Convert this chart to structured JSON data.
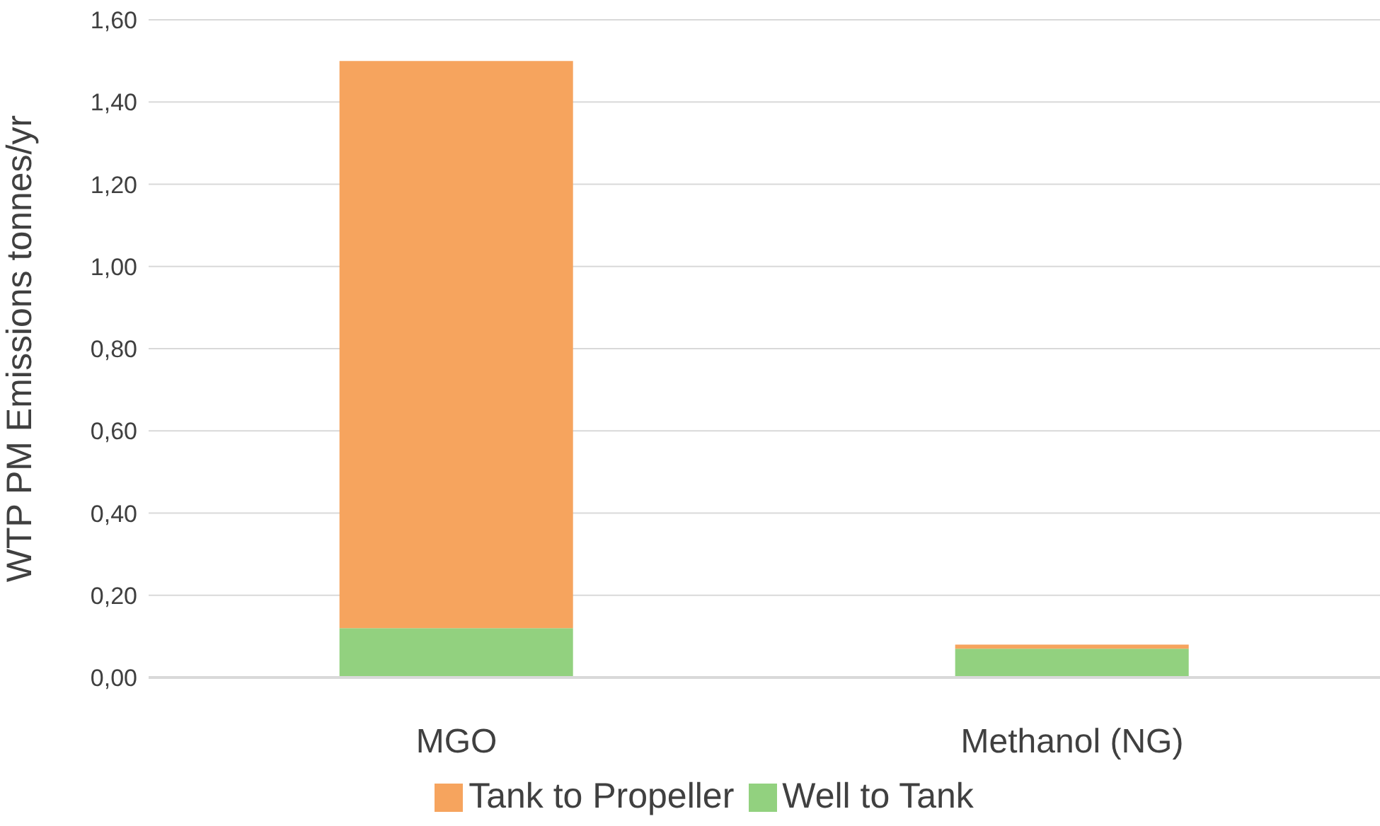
{
  "chart_data": {
    "type": "bar",
    "stacked": true,
    "ylabel": "WTP PM Emissions tonnes/yr",
    "categories": [
      "MGO",
      "Methanol (NG)"
    ],
    "series": [
      {
        "name": "Well to Tank",
        "color": "#92d17f",
        "values": [
          0.12,
          0.07
        ]
      },
      {
        "name": "Tank to Propeller",
        "color": "#f6a45e",
        "values": [
          1.38,
          0.01
        ]
      }
    ],
    "ylim": [
      0,
      1.6
    ],
    "yticks": [
      {
        "value": 0,
        "label": "0,00"
      },
      {
        "value": 0.2,
        "label": "0,20"
      },
      {
        "value": 0.4,
        "label": "0,40"
      },
      {
        "value": 0.6,
        "label": "0,60"
      },
      {
        "value": 0.8,
        "label": "0,80"
      },
      {
        "value": 1,
        "label": "1,00"
      },
      {
        "value": 1.2,
        "label": "1,20"
      },
      {
        "value": 1.4,
        "label": "1,40"
      },
      {
        "value": 1.6,
        "label": "1,60"
      }
    ],
    "grid": "y",
    "legend": "bottom"
  }
}
